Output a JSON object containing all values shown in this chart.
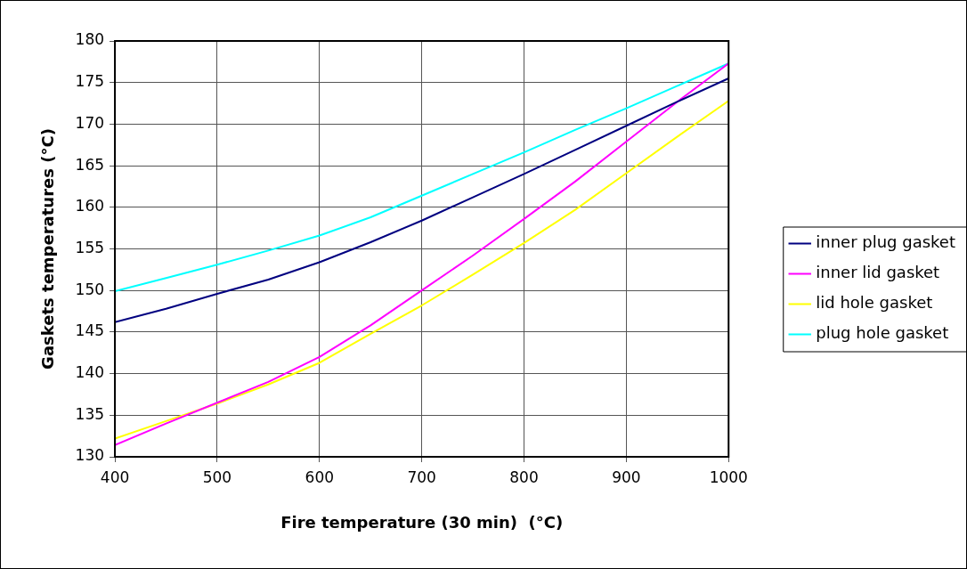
{
  "chart_data": {
    "type": "line",
    "xlabel": "Fire temperature (30 min)  (°C)",
    "ylabel": "Gaskets temperatures (°C)",
    "x": [
      400,
      450,
      500,
      550,
      600,
      650,
      700,
      750,
      800,
      850,
      900,
      950,
      1000
    ],
    "series": [
      {
        "name": "inner plug gasket",
        "color": "#000080",
        "values": [
          146.2,
          147.8,
          149.6,
          151.3,
          153.4,
          155.8,
          158.4,
          161.2,
          164.0,
          166.9,
          169.8,
          172.7,
          175.5
        ]
      },
      {
        "name": "inner lid gasket",
        "color": "#ff00ff",
        "values": [
          131.4,
          134.0,
          136.5,
          139.0,
          142.0,
          145.8,
          150.0,
          154.2,
          158.6,
          163.1,
          167.9,
          172.7,
          177.3
        ]
      },
      {
        "name": "lid hole gasket",
        "color": "#ffff00",
        "values": [
          132.2,
          134.3,
          136.4,
          138.7,
          141.3,
          144.8,
          148.2,
          151.9,
          155.7,
          159.7,
          164.1,
          168.5,
          172.8
        ]
      },
      {
        "name": "plug hole gasket",
        "color": "#00ffff",
        "values": [
          149.9,
          151.5,
          153.1,
          154.8,
          156.6,
          158.8,
          161.4,
          164.0,
          166.6,
          169.3,
          171.9,
          174.6,
          177.3
        ]
      }
    ],
    "xlim": [
      400,
      1000
    ],
    "xticks": [
      400,
      500,
      600,
      700,
      800,
      900,
      1000
    ],
    "ylim": [
      130,
      180
    ],
    "yticks": [
      130,
      135,
      140,
      145,
      150,
      155,
      160,
      165,
      170,
      175,
      180
    ],
    "grid": true,
    "legend": "right",
    "marker": "none",
    "line_style": "solid"
  }
}
